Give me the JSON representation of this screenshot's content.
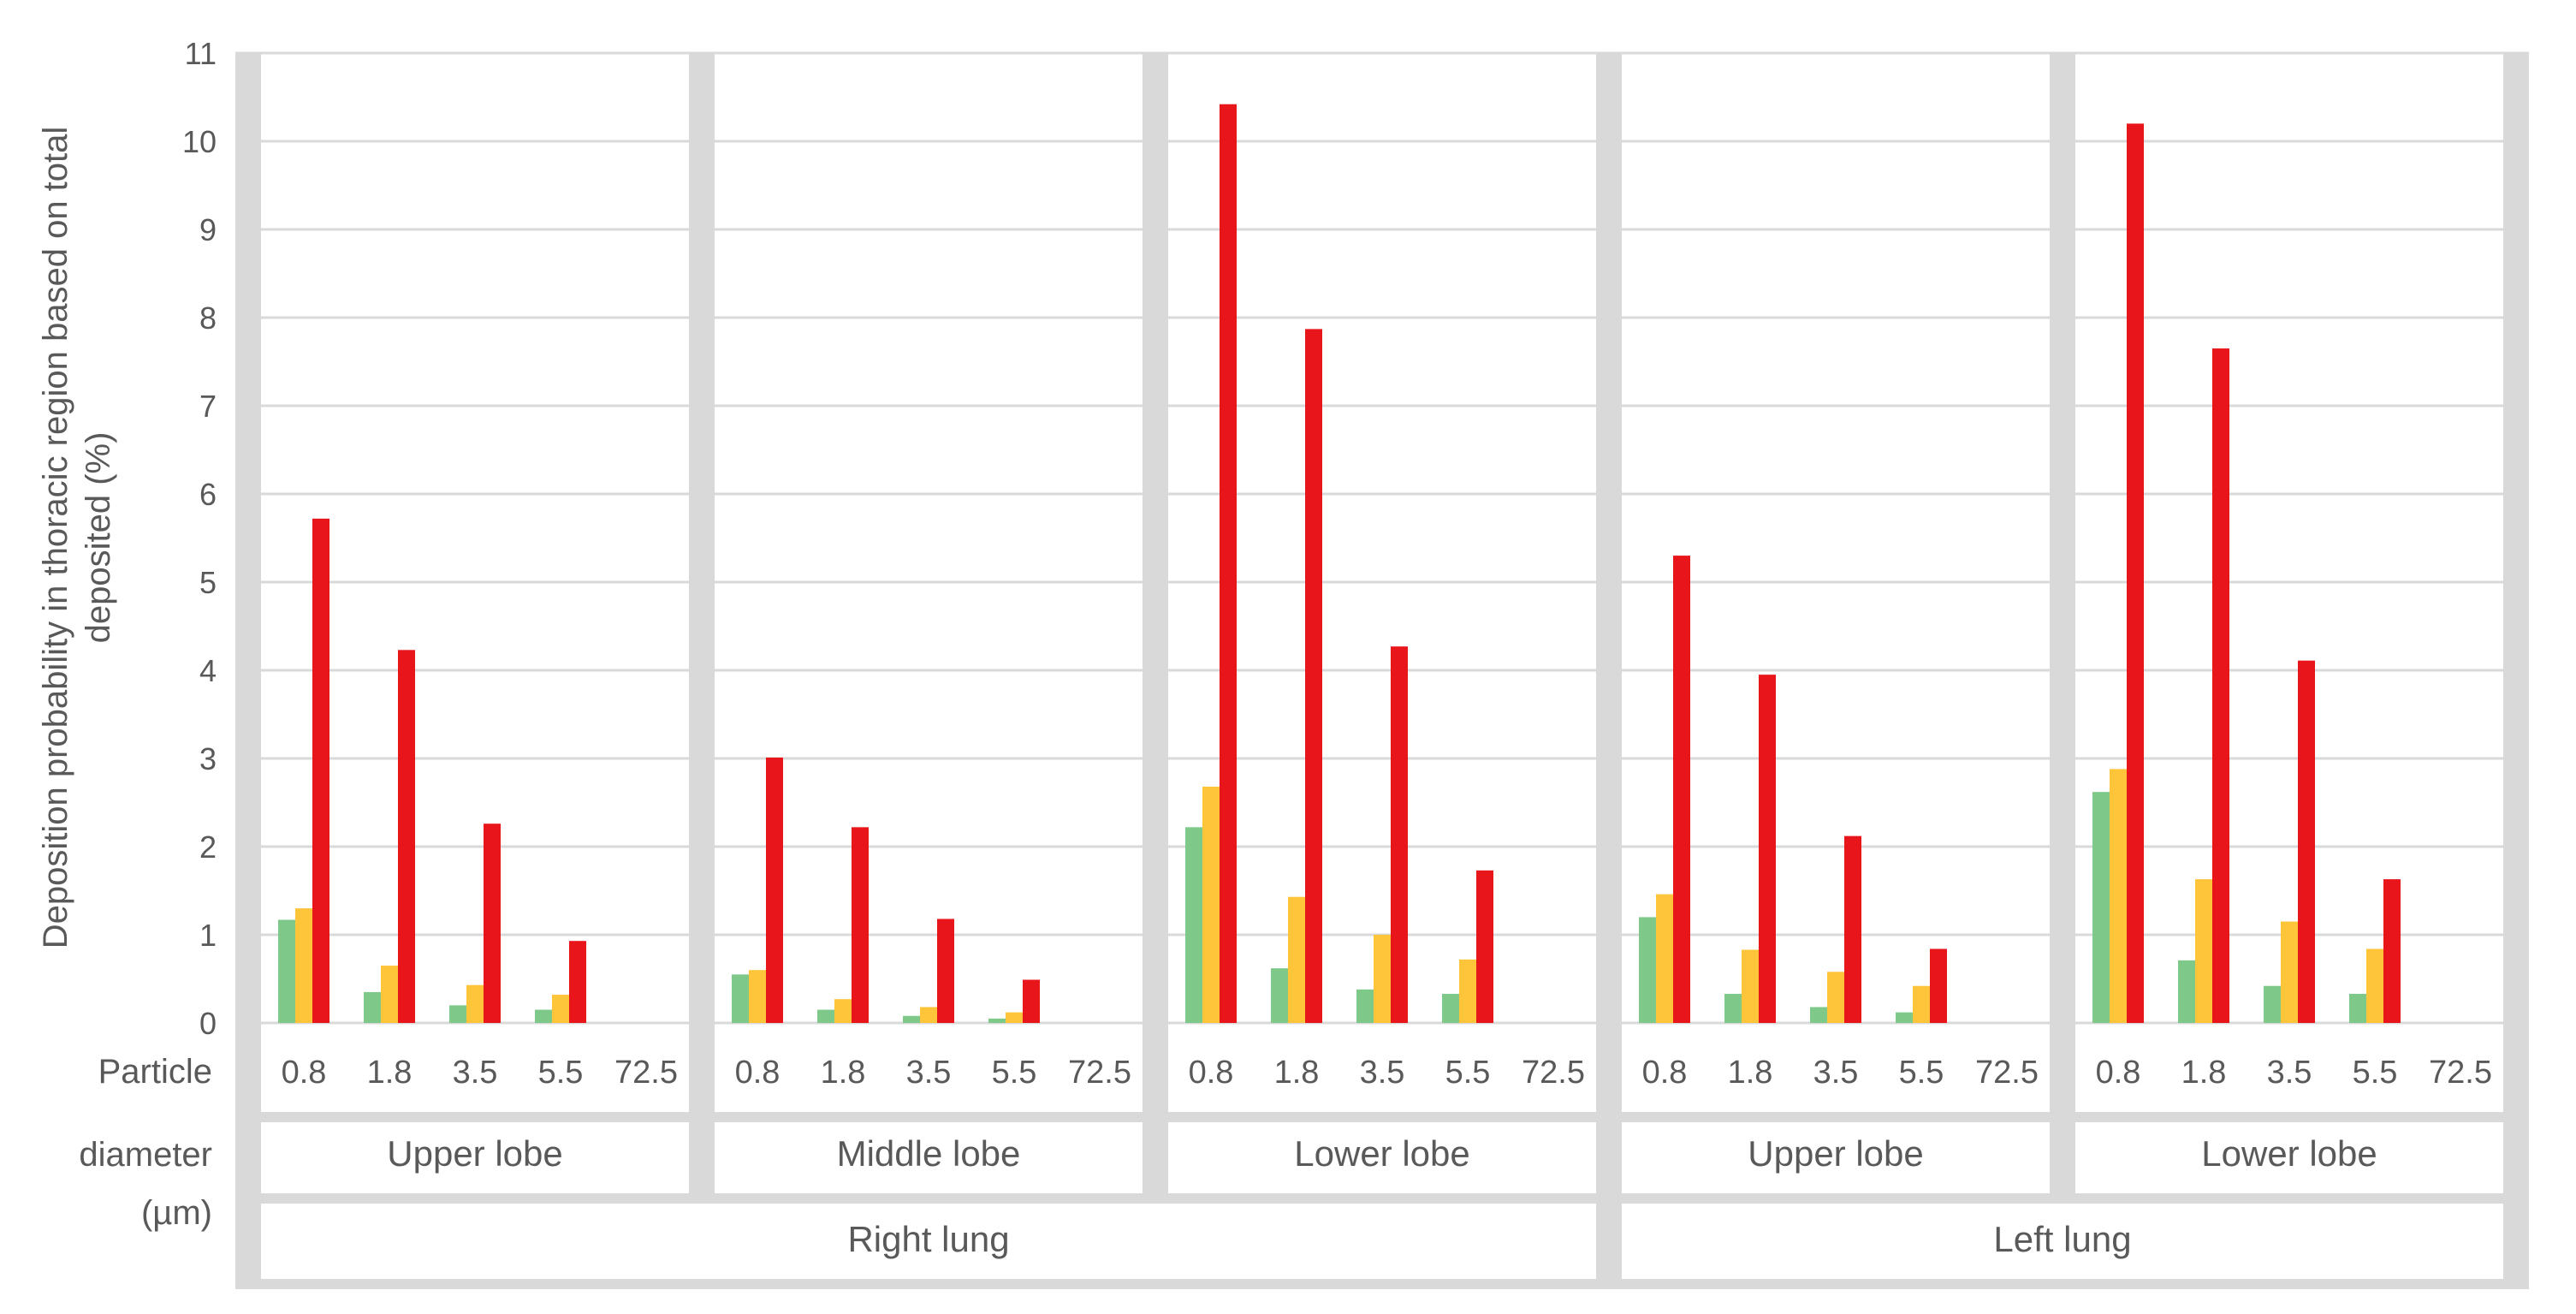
{
  "chart_data": {
    "type": "bar",
    "ylabel_lines": [
      "Deposition probability in thoracic region based on total",
      "deposited (%)"
    ],
    "x_axis_title_lines": [
      "Particle",
      "diameter",
      "(µm)"
    ],
    "ylim": [
      0,
      11
    ],
    "yticks": [
      "0",
      "1",
      "2",
      "3",
      "4",
      "5",
      "6",
      "7",
      "8",
      "9",
      "10",
      "11"
    ],
    "grid": true,
    "legend": "none",
    "particle_diameters": [
      "0.8",
      "1.8",
      "3.5",
      "5.5",
      "72.5"
    ],
    "series_colors": [
      "#7ec98a",
      "#ffc53a",
      "#e8161b"
    ],
    "lungs": [
      {
        "label": "Right lung",
        "lobes": [
          {
            "label": "Upper lobe",
            "values": [
              [
                1.17,
                1.3,
                5.72
              ],
              [
                0.35,
                0.65,
                4.23
              ],
              [
                0.2,
                0.43,
                2.26
              ],
              [
                0.15,
                0.32,
                0.93
              ],
              [
                0,
                0,
                0
              ]
            ]
          },
          {
            "label": "Middle lobe",
            "values": [
              [
                0.55,
                0.6,
                3.01
              ],
              [
                0.15,
                0.27,
                2.22
              ],
              [
                0.08,
                0.18,
                1.18
              ],
              [
                0.05,
                0.12,
                0.49
              ],
              [
                0,
                0,
                0
              ]
            ]
          },
          {
            "label": "Lower lobe",
            "values": [
              [
                2.22,
                2.68,
                10.42
              ],
              [
                0.62,
                1.43,
                7.87
              ],
              [
                0.38,
                1.0,
                4.27
              ],
              [
                0.33,
                0.72,
                1.73
              ],
              [
                0,
                0,
                0
              ]
            ]
          }
        ]
      },
      {
        "label": "Left lung",
        "lobes": [
          {
            "label": "Upper lobe",
            "values": [
              [
                1.2,
                1.46,
                5.3
              ],
              [
                0.33,
                0.83,
                3.95
              ],
              [
                0.18,
                0.58,
                2.12
              ],
              [
                0.12,
                0.42,
                0.84
              ],
              [
                0,
                0,
                0
              ]
            ]
          },
          {
            "label": "Lower lobe",
            "values": [
              [
                2.62,
                2.88,
                10.2
              ],
              [
                0.71,
                1.63,
                7.65
              ],
              [
                0.42,
                1.15,
                4.11
              ],
              [
                0.33,
                0.84,
                1.63
              ],
              [
                0,
                0,
                0
              ]
            ]
          }
        ]
      }
    ]
  }
}
